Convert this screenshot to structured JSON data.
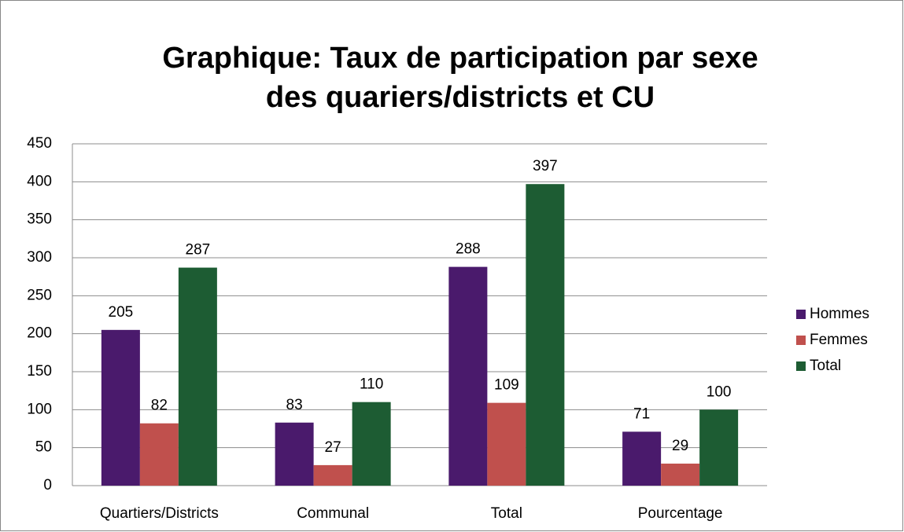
{
  "chart_data": {
    "type": "bar",
    "title": [
      "Graphique: Taux de participation par sexe",
      "des quariers/districts et CU"
    ],
    "categories": [
      "Quartiers/Districts",
      "Communal",
      "Total",
      "Pourcentage"
    ],
    "series": [
      {
        "name": "Hommes",
        "color": "#4a1a6c",
        "values": [
          205,
          83,
          288,
          71
        ]
      },
      {
        "name": "Femmes",
        "color": "#c0504d",
        "values": [
          82,
          27,
          109,
          29
        ]
      },
      {
        "name": "Total",
        "color": "#1d5c33",
        "values": [
          287,
          110,
          397,
          100
        ]
      }
    ],
    "ylim": [
      0,
      450
    ],
    "yticks": [
      0,
      50,
      100,
      150,
      200,
      250,
      300,
      350,
      400,
      450
    ],
    "grid": true,
    "legend": "right"
  }
}
